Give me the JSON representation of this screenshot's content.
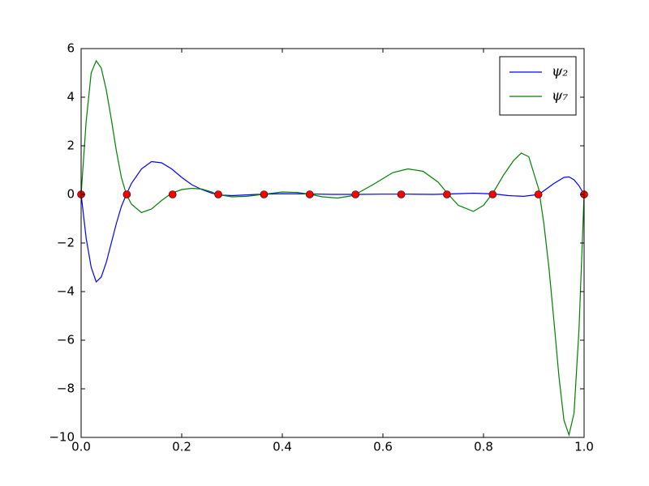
{
  "chart_data": {
    "type": "line",
    "xlim": [
      0,
      1
    ],
    "ylim": [
      -10,
      6
    ],
    "xticks": [
      {
        "value": 0,
        "label": "0.0"
      },
      0.2,
      0.4,
      0.6,
      0.8,
      {
        "value": 1,
        "label": "1.0"
      }
    ],
    "yticks": [
      {
        "value": -10,
        "label": "−10"
      },
      {
        "value": -8,
        "label": "−8"
      },
      {
        "value": -6,
        "label": "−6"
      },
      {
        "value": -4,
        "label": "−4"
      },
      {
        "value": -2,
        "label": "−2"
      },
      0,
      2,
      4,
      6
    ],
    "legend": "upper right",
    "series": [
      {
        "name": "ψ₂",
        "color": "#0000ff",
        "x": [
          0,
          0.01,
          0.02,
          0.03,
          0.04,
          0.05,
          0.06,
          0.07,
          0.08,
          0.09,
          0.1,
          0.12,
          0.14,
          0.16,
          0.18,
          0.2,
          0.22,
          0.24,
          0.26,
          0.28,
          0.3,
          0.35,
          0.4,
          0.45,
          0.5,
          0.55,
          0.6,
          0.65,
          0.7,
          0.75,
          0.78,
          0.82,
          0.85,
          0.88,
          0.91,
          0.94,
          0.96,
          0.97,
          0.98,
          0.99,
          1.0
        ],
        "values": [
          0,
          -1.8,
          -3.0,
          -3.6,
          -3.4,
          -2.8,
          -2.0,
          -1.2,
          -0.5,
          0,
          0.45,
          1.05,
          1.35,
          1.3,
          1.05,
          0.7,
          0.4,
          0.2,
          0.05,
          -0.03,
          -0.05,
          0,
          0.03,
          0.02,
          0,
          0,
          0.01,
          0.01,
          0,
          0.03,
          0.05,
          0.02,
          -0.05,
          -0.08,
          0,
          0.45,
          0.7,
          0.72,
          0.6,
          0.35,
          0
        ]
      },
      {
        "name": "ψ₇",
        "color": "#008000",
        "x": [
          0,
          0.01,
          0.02,
          0.03,
          0.04,
          0.05,
          0.06,
          0.07,
          0.08,
          0.09,
          0.1,
          0.12,
          0.14,
          0.16,
          0.18,
          0.2,
          0.22,
          0.24,
          0.26,
          0.27,
          0.3,
          0.33,
          0.36,
          0.4,
          0.43,
          0.45,
          0.48,
          0.51,
          0.54,
          0.55,
          0.58,
          0.62,
          0.65,
          0.68,
          0.71,
          0.73,
          0.75,
          0.78,
          0.8,
          0.82,
          0.84,
          0.86,
          0.875,
          0.89,
          0.91,
          0.92,
          0.93,
          0.94,
          0.95,
          0.96,
          0.97,
          0.98,
          0.99,
          1.0
        ],
        "values": [
          0,
          3.0,
          5.0,
          5.5,
          5.2,
          4.3,
          3.1,
          1.8,
          0.7,
          0,
          -0.4,
          -0.75,
          -0.6,
          -0.25,
          0.05,
          0.2,
          0.25,
          0.22,
          0.1,
          0,
          -0.1,
          -0.08,
          0,
          0.1,
          0.08,
          0.02,
          -0.1,
          -0.15,
          -0.05,
          0.05,
          0.4,
          0.9,
          1.05,
          0.95,
          0.5,
          0,
          -0.45,
          -0.7,
          -0.45,
          0.1,
          0.8,
          1.4,
          1.7,
          1.55,
          0.2,
          -1.2,
          -3.0,
          -5.2,
          -7.5,
          -9.3,
          -9.9,
          -9.0,
          -5.5,
          0
        ]
      },
      {
        "color": "#ff0000",
        "marker": "o",
        "x": [
          0,
          0.0909,
          0.1818,
          0.2727,
          0.3636,
          0.4545,
          0.5455,
          0.6364,
          0.7273,
          0.8182,
          0.9091,
          1.0
        ],
        "values": [
          0,
          0,
          0,
          0,
          0,
          0,
          0,
          0,
          0,
          0,
          0,
          0
        ]
      }
    ]
  }
}
